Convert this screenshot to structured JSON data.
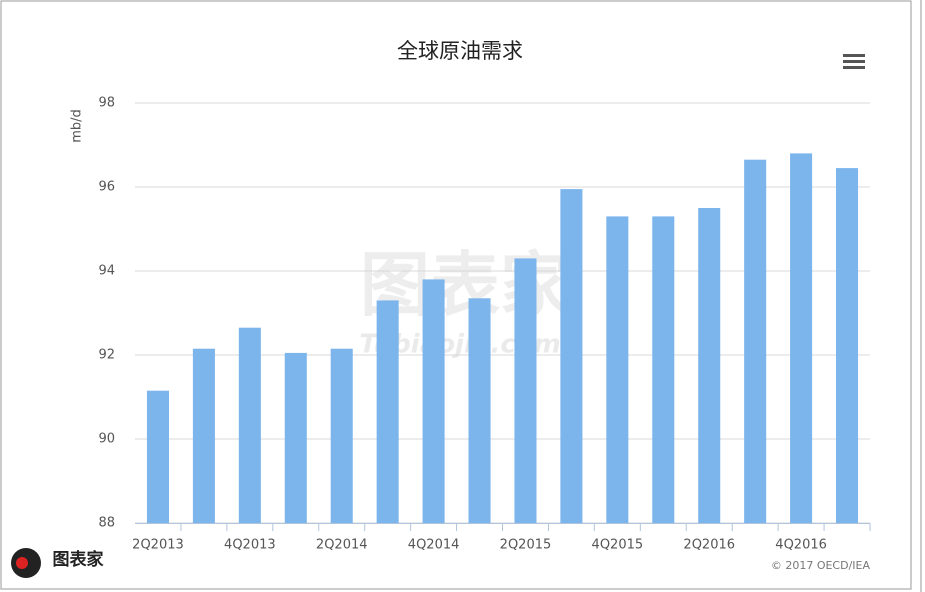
{
  "chart_data": {
    "type": "bar",
    "title": "全球原油需求",
    "y_label": "mb/d",
    "categories": [
      "2Q2013",
      null,
      "4Q2013",
      null,
      "2Q2014",
      null,
      "4Q2014",
      null,
      "2Q2015",
      null,
      "4Q2015",
      null,
      "2Q2016",
      null,
      "4Q2016",
      null
    ],
    "values": [
      91.15,
      92.15,
      92.65,
      92.05,
      92.15,
      93.3,
      93.8,
      93.35,
      94.3,
      95.95,
      95.3,
      95.3,
      95.5,
      96.65,
      96.8,
      96.45
    ],
    "color": "#7cb5ec",
    "ylim": [
      88,
      98
    ],
    "yticks": [
      88,
      90,
      92,
      94,
      96,
      98
    ],
    "grid": true,
    "credit": "© 2017 OECD/IEA",
    "watermark": "图表家",
    "watermark_url": "Tubiaojia.com"
  }
}
